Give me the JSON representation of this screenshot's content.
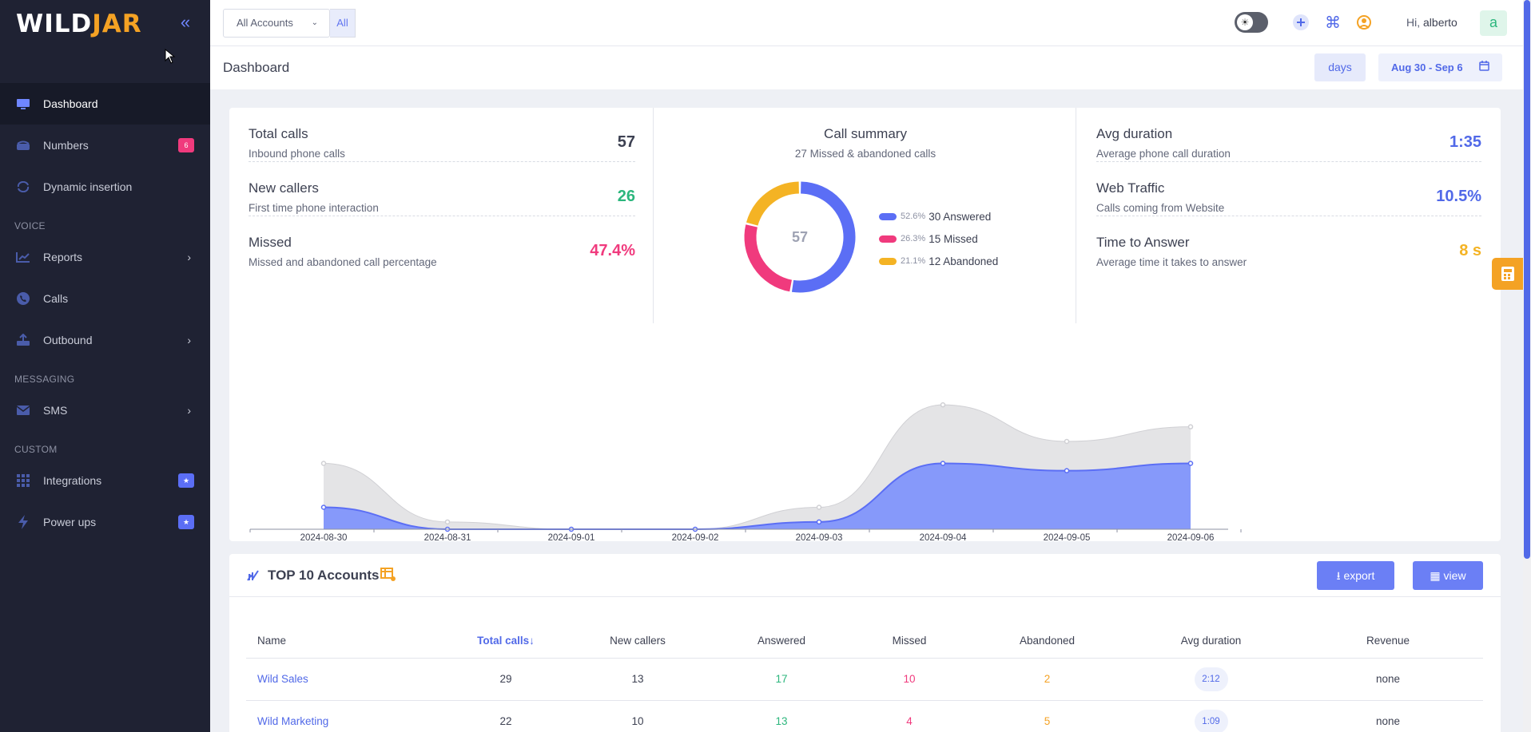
{
  "brand": {
    "logo_left": "WILD",
    "logo_right": "JAR"
  },
  "sidebar": {
    "items": [
      {
        "label": "Dashboard"
      },
      {
        "label": "Numbers",
        "badge": "6"
      },
      {
        "label": "Dynamic insertion"
      }
    ],
    "voice_section": "VOICE",
    "voice_items": [
      {
        "label": "Reports"
      },
      {
        "label": "Calls"
      },
      {
        "label": "Outbound"
      }
    ],
    "messaging_section": "MESSAGING",
    "messaging_items": [
      {
        "label": "SMS"
      }
    ],
    "custom_section": "CUSTOM",
    "custom_items": [
      {
        "label": "Integrations",
        "badge": "★"
      },
      {
        "label": "Power ups",
        "badge": "★"
      }
    ]
  },
  "topbar": {
    "account_select": "All Accounts",
    "account_all": "All",
    "greeting": "Hi,",
    "username": "alberto",
    "avatar_letter": "a"
  },
  "page": {
    "title": "Dashboard",
    "range_unit": "days",
    "date_range": "Aug 30 - Sep 6"
  },
  "stats": {
    "total_calls": {
      "title": "Total calls",
      "sub": "Inbound phone calls",
      "value": "57"
    },
    "new_callers": {
      "title": "New callers",
      "sub": "First time phone interaction",
      "value": "26"
    },
    "missed": {
      "title": "Missed",
      "sub": "Missed and abandoned call percentage",
      "value": "47.4%"
    },
    "avg_duration": {
      "title": "Avg duration",
      "sub": "Average phone call duration",
      "value": "1:35"
    },
    "web_traffic": {
      "title": "Web Traffic",
      "sub": "Calls coming from Website",
      "value": "10.5%"
    },
    "time_to_answer": {
      "title": "Time to Answer",
      "sub": "Average time it takes to answer",
      "value": "8 s"
    }
  },
  "call_summary": {
    "title": "Call summary",
    "sub": "27 Missed & abandoned calls",
    "center": "57",
    "legend": [
      {
        "pct": "52.6%",
        "label": "30 Answered"
      },
      {
        "pct": "26.3%",
        "label": "15 Missed"
      },
      {
        "pct": "21.1%",
        "label": "12 Abandoned"
      }
    ]
  },
  "colors": {
    "answered": "#5b6ef5",
    "missed": "#f03a7d",
    "abandoned": "#f4b324",
    "total_area": "#e4e4e6",
    "accent": "#5169e8"
  },
  "chart_data": [
    {
      "type": "pie",
      "categories": [
        "Answered",
        "Missed",
        "Abandoned"
      ],
      "values": [
        30,
        15,
        12
      ]
    },
    {
      "type": "area",
      "x": [
        "2024-08-30",
        "2024-08-31",
        "2024-09-01",
        "2024-09-02",
        "2024-09-03",
        "2024-09-04",
        "2024-09-05",
        "2024-09-06"
      ],
      "series": [
        {
          "values": [
            9,
            1,
            0,
            0,
            3,
            17,
            12,
            14
          ]
        },
        {
          "values": [
            3,
            0,
            0,
            0,
            1,
            9,
            8,
            9
          ]
        }
      ],
      "ylim": [
        0,
        18
      ],
      "grid": false
    }
  ],
  "top_accounts": {
    "title": "TOP 10 Accounts",
    "export_label": "export",
    "view_label": "view",
    "columns": [
      "Name",
      "Total calls↓",
      "New callers",
      "Answered",
      "Missed",
      "Abandoned",
      "Avg duration",
      "Revenue"
    ],
    "rows": [
      {
        "name": "Wild Sales",
        "total": "29",
        "new": "13",
        "answered": "17",
        "missed": "10",
        "abandoned": "2",
        "avg": "2:12",
        "revenue": "none"
      },
      {
        "name": "Wild Marketing",
        "total": "22",
        "new": "10",
        "answered": "13",
        "missed": "4",
        "abandoned": "5",
        "avg": "1:09",
        "revenue": "none"
      }
    ]
  }
}
